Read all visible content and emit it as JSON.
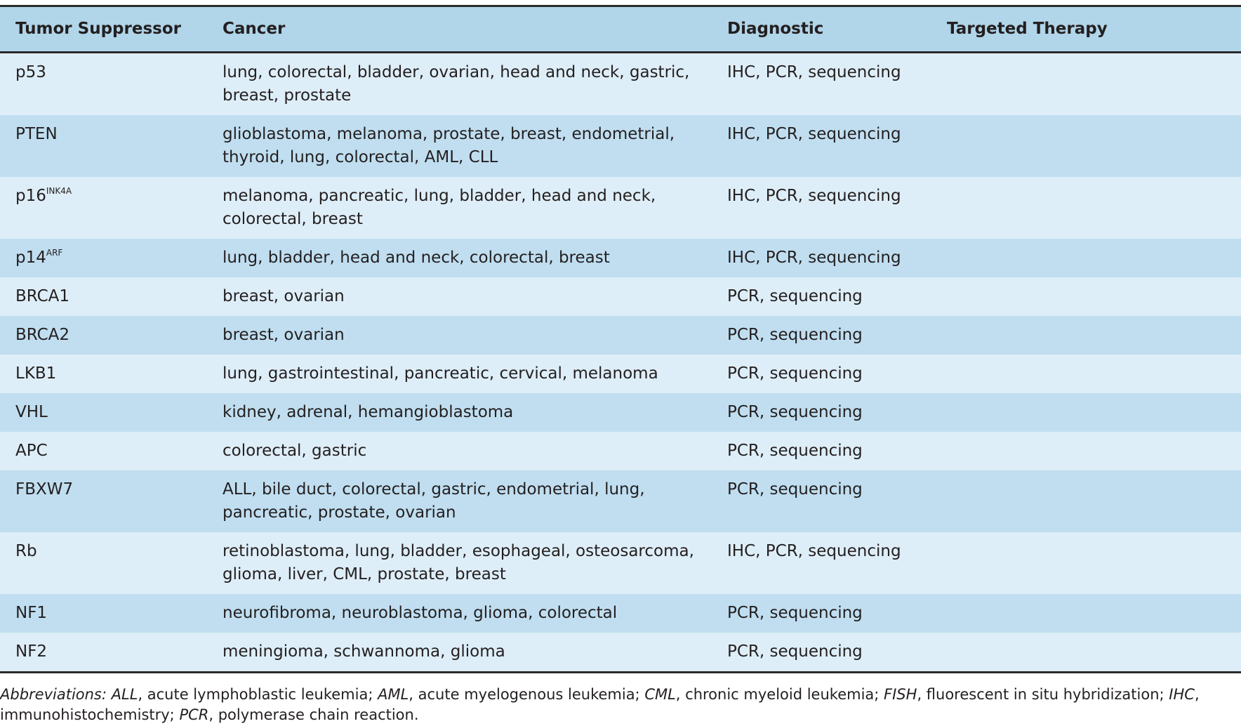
{
  "table": {
    "header": [
      "Tumor Suppressor",
      "Cancer",
      "Diagnostic",
      "Targeted Therapy"
    ],
    "rows": [
      [
        {
          "name": "p53"
        },
        "lung, colorectal, bladder, ovarian, head and neck, gastric, breast, prostate",
        "IHC, PCR, sequencing"
      ],
      [
        {
          "name": "PTEN"
        },
        "glioblastoma, melanoma, prostate, breast, endometrial, thyroid, lung, colorectal, AML, CLL",
        "IHC, PCR, sequencing"
      ],
      [
        {
          "name": "p16",
          "superscript": "INK4A"
        },
        "melanoma, pancreatic, lung, bladder, head and neck, colorectal, breast",
        "IHC, PCR, sequencing"
      ],
      [
        {
          "name": "p14",
          "superscript": "ARF"
        },
        "lung, bladder, head and neck, colorectal, breast",
        "IHC, PCR, sequencing"
      ],
      [
        {
          "name": "BRCA1"
        },
        "breast, ovarian",
        "PCR, sequencing"
      ],
      [
        {
          "name": "BRCA2"
        },
        "breast, ovarian",
        "PCR, sequencing"
      ],
      [
        {
          "name": "LKB1"
        },
        "lung, gastrointestinal, pancreatic, cervical, melanoma",
        "PCR, sequencing"
      ],
      [
        {
          "name": "VHL"
        },
        "kidney, adrenal, hemangioblastoma",
        "PCR, sequencing"
      ],
      [
        {
          "name": "APC"
        },
        "colorectal, gastric",
        "PCR, sequencing"
      ],
      [
        {
          "name": "FBXW7"
        },
        "ALL, bile duct, colorectal, gastric, endometrial, lung, pancreatic, prostate, ovarian",
        "PCR, sequencing"
      ],
      [
        {
          "name": "Rb"
        },
        "retinoblastoma, lung, bladder, esophageal, osteosarcoma, glioma, liver, CML, prostate, breast",
        "IHC, PCR, sequencing"
      ],
      [
        {
          "name": "NF1"
        },
        "neurofibroma, neuroblastoma, glioma, colorectal",
        "PCR, sequencing"
      ],
      [
        {
          "name": "NF2"
        },
        "meningioma, schwannoma, glioma",
        "PCR, sequencing"
      ]
    ]
  },
  "footnote": {
    "label": "Abbreviations:",
    "items": [
      {
        "abbr": "ALL",
        "text": ", acute lymphoblastic leukemia; "
      },
      {
        "abbr": "AML",
        "text": ", acute myelogenous leukemia; "
      },
      {
        "abbr": "CML",
        "text": ", chronic myeloid leukemia; "
      },
      {
        "abbr": "FISH",
        "text": ", fluorescent in situ hybridization; "
      },
      {
        "abbr": "IHC",
        "text": ", immunohistochemistry; "
      },
      {
        "abbr": "PCR",
        "text": ", polymerase chain reaction."
      }
    ]
  }
}
